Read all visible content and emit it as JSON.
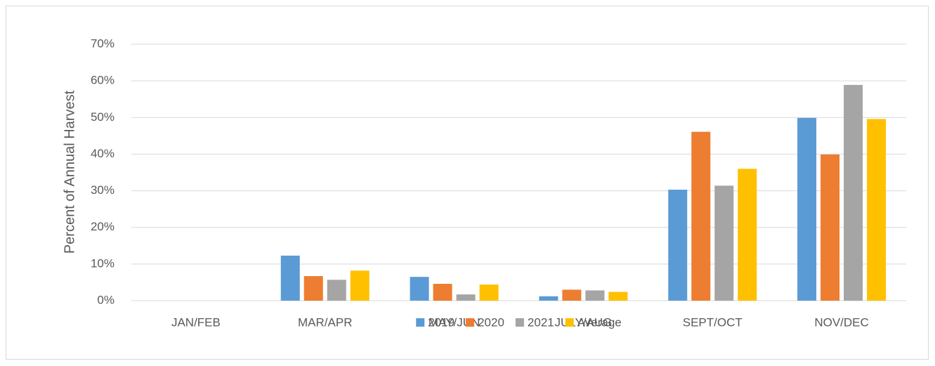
{
  "chart_data": {
    "type": "bar",
    "y_label": "Percent of Annual Harvest",
    "categories": [
      "JAN/FEB",
      "MAR/APR",
      "MAY/JUN",
      "JULY/AUG",
      "SEPT/OCT",
      "NOV/DEC"
    ],
    "series": [
      {
        "name": "2019",
        "color": "#5b9bd5",
        "values": [
          0,
          12.3,
          6.5,
          1.2,
          30.3,
          49.9
        ]
      },
      {
        "name": "2020",
        "color": "#ed7d31",
        "values": [
          0,
          6.7,
          4.6,
          3.0,
          46.1,
          39.9
        ]
      },
      {
        "name": "2021",
        "color": "#a5a5a5",
        "values": [
          0,
          5.7,
          1.7,
          2.8,
          31.4,
          58.9
        ]
      },
      {
        "name": "Average",
        "color": "#ffc000",
        "values": [
          0,
          8.2,
          4.4,
          2.4,
          36.0,
          49.6
        ]
      }
    ],
    "ylim": [
      0,
      70
    ],
    "yticks": [
      {
        "value": 0,
        "label": "0%"
      },
      {
        "value": 10,
        "label": "10%"
      },
      {
        "value": 20,
        "label": "20%"
      },
      {
        "value": 30,
        "label": "30%"
      },
      {
        "value": 40,
        "label": "40%"
      },
      {
        "value": 50,
        "label": "50%"
      },
      {
        "value": 60,
        "label": "60%"
      },
      {
        "value": 70,
        "label": "70%"
      }
    ],
    "grid": true,
    "legend": "bottom"
  }
}
